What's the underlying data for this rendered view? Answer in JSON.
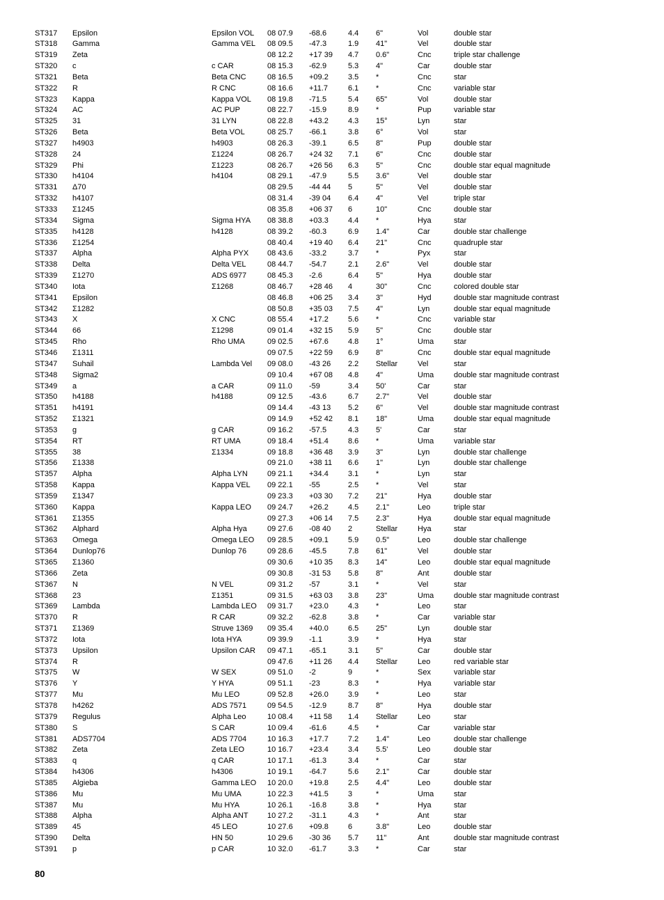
{
  "page_number": "80",
  "rows": [
    {
      "id": "ST317",
      "name": "Epsilon",
      "desig": "Epsilon VOL",
      "ra": "08 07.9",
      "dec": "-68.6",
      "mag": "4.4",
      "sep": "6\"",
      "const": "Vol",
      "type": "double star"
    },
    {
      "id": "ST318",
      "name": "Gamma",
      "desig": "Gamma VEL",
      "ra": "08 09.5",
      "dec": "-47.3",
      "mag": "1.9",
      "sep": "41\"",
      "const": "Vel",
      "type": "double star"
    },
    {
      "id": "ST319",
      "name": "Zeta",
      "desig": "",
      "ra": "08 12.2",
      "dec": "+17 39",
      "mag": "4.7",
      "sep": "0.6\"",
      "const": "Cnc",
      "type": "triple star challenge"
    },
    {
      "id": "ST320",
      "name": "c",
      "desig": "c CAR",
      "ra": "08 15.3",
      "dec": "-62.9",
      "mag": "5.3",
      "sep": "4\"",
      "const": "Car",
      "type": "double star"
    },
    {
      "id": "ST321",
      "name": "Beta",
      "desig": "Beta CNC",
      "ra": "08 16.5",
      "dec": "+09.2",
      "mag": "3.5",
      "sep": "*",
      "const": "Cnc",
      "type": "star"
    },
    {
      "id": "ST322",
      "name": "R",
      "desig": "R CNC",
      "ra": "08 16.6",
      "dec": "+11.7",
      "mag": "6.1",
      "sep": "*",
      "const": "Cnc",
      "type": "variable star"
    },
    {
      "id": "ST323",
      "name": "Kappa",
      "desig": "Kappa VOL",
      "ra": "08 19.8",
      "dec": "-71.5",
      "mag": "5.4",
      "sep": "65\"",
      "const": "Vol",
      "type": "double star"
    },
    {
      "id": "ST324",
      "name": "AC",
      "desig": "AC PUP",
      "ra": "08 22.7",
      "dec": "-15.9",
      "mag": "8.9",
      "sep": "*",
      "const": "Pup",
      "type": "variable star"
    },
    {
      "id": "ST325",
      "name": "31",
      "desig": "31 LYN",
      "ra": "08 22.8",
      "dec": "+43.2",
      "mag": "4.3",
      "sep": "15°",
      "const": "Lyn",
      "type": "star"
    },
    {
      "id": "ST326",
      "name": "Beta",
      "desig": "Beta VOL",
      "ra": "08 25.7",
      "dec": "-66.1",
      "mag": "3.8",
      "sep": "6°",
      "const": "Vol",
      "type": "star"
    },
    {
      "id": "ST327",
      "name": "h4903",
      "desig": "h4903",
      "ra": "08 26.3",
      "dec": "-39.1",
      "mag": "6.5",
      "sep": "8\"",
      "const": "Pup",
      "type": "double star"
    },
    {
      "id": "ST328",
      "name": "24",
      "desig": "Σ1224",
      "ra": "08 26.7",
      "dec": "+24 32",
      "mag": "7.1",
      "sep": "6\"",
      "const": "Cnc",
      "type": "double star"
    },
    {
      "id": "ST329",
      "name": "Phi",
      "desig": "Σ1223",
      "ra": "08 26.7",
      "dec": "+26 56",
      "mag": "6.3",
      "sep": "5\"",
      "const": "Cnc",
      "type": "double star equal magnitude"
    },
    {
      "id": "ST330",
      "name": "h4104",
      "desig": "h4104",
      "ra": "08 29.1",
      "dec": "-47.9",
      "mag": "5.5",
      "sep": "3.6\"",
      "const": "Vel",
      "type": "double star"
    },
    {
      "id": "ST331",
      "name": "Δ70",
      "desig": "",
      "ra": "08 29.5",
      "dec": "-44 44",
      "mag": "5",
      "sep": "5\"",
      "const": "Vel",
      "type": "double star"
    },
    {
      "id": "ST332",
      "name": "h4107",
      "desig": "",
      "ra": "08 31.4",
      "dec": "-39 04",
      "mag": "6.4",
      "sep": "4\"",
      "const": "Vel",
      "type": "triple star"
    },
    {
      "id": "ST333",
      "name": "Σ1245",
      "desig": "",
      "ra": "08 35.8",
      "dec": "+06 37",
      "mag": "6",
      "sep": "10\"",
      "const": "Cnc",
      "type": "double star"
    },
    {
      "id": "ST334",
      "name": "Sigma",
      "desig": "Sigma HYA",
      "ra": "08 38.8",
      "dec": "+03.3",
      "mag": "4.4",
      "sep": "*",
      "const": "Hya",
      "type": "star"
    },
    {
      "id": "ST335",
      "name": "h4128",
      "desig": "h4128",
      "ra": "08 39.2",
      "dec": "-60.3",
      "mag": "6.9",
      "sep": "1.4\"",
      "const": "Car",
      "type": "double star challenge"
    },
    {
      "id": "ST336",
      "name": "Σ1254",
      "desig": "",
      "ra": "08 40.4",
      "dec": "+19 40",
      "mag": "6.4",
      "sep": "21\"",
      "const": "Cnc",
      "type": "quadruple star"
    },
    {
      "id": "ST337",
      "name": "Alpha",
      "desig": "Alpha PYX",
      "ra": "08 43.6",
      "dec": "-33.2",
      "mag": "3.7",
      "sep": "*",
      "const": "Pyx",
      "type": "star"
    },
    {
      "id": "ST338",
      "name": "Delta",
      "desig": "Delta VEL",
      "ra": "08 44.7",
      "dec": "-54.7",
      "mag": "2.1",
      "sep": "2.6\"",
      "const": "Vel",
      "type": "double star"
    },
    {
      "id": "ST339",
      "name": "Σ1270",
      "desig": "ADS 6977",
      "ra": "08 45.3",
      "dec": "-2.6",
      "mag": "6.4",
      "sep": "5\"",
      "const": "Hya",
      "type": "double star"
    },
    {
      "id": "ST340",
      "name": "Iota",
      "desig": "Σ1268",
      "ra": "08 46.7",
      "dec": "+28 46",
      "mag": "4",
      "sep": "30\"",
      "const": "Cnc",
      "type": "colored double star"
    },
    {
      "id": "ST341",
      "name": "Epsilon",
      "desig": "",
      "ra": "08 46.8",
      "dec": "+06 25",
      "mag": "3.4",
      "sep": "3\"",
      "const": "Hyd",
      "type": "double star magnitude contrast"
    },
    {
      "id": "ST342",
      "name": "Σ1282",
      "desig": "",
      "ra": "08 50.8",
      "dec": "+35 03",
      "mag": "7.5",
      "sep": "4\"",
      "const": "Lyn",
      "type": "double star equal magnitude"
    },
    {
      "id": "ST343",
      "name": "X",
      "desig": "X CNC",
      "ra": "08 55.4",
      "dec": "+17.2",
      "mag": "5.6",
      "sep": "*",
      "const": "Cnc",
      "type": "variable star"
    },
    {
      "id": "ST344",
      "name": "66",
      "desig": "Σ1298",
      "ra": "09 01.4",
      "dec": "+32 15",
      "mag": "5.9",
      "sep": "5\"",
      "const": "Cnc",
      "type": "double star"
    },
    {
      "id": "ST345",
      "name": "Rho",
      "desig": "Rho UMA",
      "ra": "09 02.5",
      "dec": "+67.6",
      "mag": "4.8",
      "sep": "1°",
      "const": "Uma",
      "type": "star"
    },
    {
      "id": "ST346",
      "name": "Σ1311",
      "desig": "",
      "ra": "09 07.5",
      "dec": "+22 59",
      "mag": "6.9",
      "sep": "8\"",
      "const": "Cnc",
      "type": "double star equal magnitude"
    },
    {
      "id": "ST347",
      "name": "Suhail",
      "desig": "Lambda Vel",
      "ra": "09 08.0",
      "dec": "-43 26",
      "mag": "2.2",
      "sep": "Stellar",
      "const": "Vel",
      "type": "star"
    },
    {
      "id": "ST348",
      "name": "Sigma2",
      "desig": "",
      "ra": "09 10.4",
      "dec": "+67 08",
      "mag": "4.8",
      "sep": "4\"",
      "const": "Uma",
      "type": "double star magnitude contrast"
    },
    {
      "id": "ST349",
      "name": "a",
      "desig": "a CAR",
      "ra": "09 11.0",
      "dec": "-59",
      "mag": "3.4",
      "sep": "50'",
      "const": "Car",
      "type": "star"
    },
    {
      "id": "ST350",
      "name": "h4188",
      "desig": "h4188",
      "ra": "09 12.5",
      "dec": "-43.6",
      "mag": "6.7",
      "sep": "2.7\"",
      "const": "Vel",
      "type": "double star"
    },
    {
      "id": "ST351",
      "name": "h4191",
      "desig": "",
      "ra": "09 14.4",
      "dec": "-43 13",
      "mag": "5.2",
      "sep": "6\"",
      "const": "Vel",
      "type": "double star magnitude contrast"
    },
    {
      "id": "ST352",
      "name": "Σ1321",
      "desig": "",
      "ra": "09 14.9",
      "dec": "+52 42",
      "mag": "8.1",
      "sep": "18\"",
      "const": "Uma",
      "type": "double star equal magnitude"
    },
    {
      "id": "ST353",
      "name": "g",
      "desig": "g CAR",
      "ra": "09 16.2",
      "dec": "-57.5",
      "mag": "4.3",
      "sep": "5'",
      "const": "Car",
      "type": "star"
    },
    {
      "id": "ST354",
      "name": "RT",
      "desig": "RT UMA",
      "ra": "09 18.4",
      "dec": "+51.4",
      "mag": "8.6",
      "sep": "*",
      "const": "Uma",
      "type": "variable star"
    },
    {
      "id": "ST355",
      "name": "38",
      "desig": "Σ1334",
      "ra": "09 18.8",
      "dec": "+36 48",
      "mag": "3.9",
      "sep": "3\"",
      "const": "Lyn",
      "type": "double star challenge"
    },
    {
      "id": "ST356",
      "name": "Σ1338",
      "desig": "",
      "ra": "09 21.0",
      "dec": "+38 11",
      "mag": "6.6",
      "sep": "1\"",
      "const": "Lyn",
      "type": "double star challenge"
    },
    {
      "id": "ST357",
      "name": "Alpha",
      "desig": "Alpha LYN",
      "ra": "09 21.1",
      "dec": "+34.4",
      "mag": "3.1",
      "sep": "*",
      "const": "Lyn",
      "type": "star"
    },
    {
      "id": "ST358",
      "name": "Kappa",
      "desig": "Kappa VEL",
      "ra": "09 22.1",
      "dec": "-55",
      "mag": "2.5",
      "sep": "*",
      "const": "Vel",
      "type": "star"
    },
    {
      "id": "ST359",
      "name": "Σ1347",
      "desig": "",
      "ra": "09 23.3",
      "dec": "+03 30",
      "mag": "7.2",
      "sep": "21\"",
      "const": "Hya",
      "type": "double star"
    },
    {
      "id": "ST360",
      "name": "Kappa",
      "desig": "Kappa LEO",
      "ra": "09 24.7",
      "dec": "+26.2",
      "mag": "4.5",
      "sep": "2.1\"",
      "const": "Leo",
      "type": "triple star"
    },
    {
      "id": "ST361",
      "name": "Σ1355",
      "desig": "",
      "ra": "09 27.3",
      "dec": "+06 14",
      "mag": "7.5",
      "sep": "2.3\"",
      "const": "Hya",
      "type": "double star equal magnitude"
    },
    {
      "id": "ST362",
      "name": "Alphard",
      "desig": "Alpha Hya",
      "ra": "09 27.6",
      "dec": "-08 40",
      "mag": "2",
      "sep": "Stellar",
      "const": "Hya",
      "type": "star"
    },
    {
      "id": "ST363",
      "name": "Omega",
      "desig": "Omega LEO",
      "ra": "09 28.5",
      "dec": "+09.1",
      "mag": "5.9",
      "sep": "0.5\"",
      "const": "Leo",
      "type": "double star challenge"
    },
    {
      "id": "ST364",
      "name": "Dunlop76",
      "desig": "Dunlop 76",
      "ra": "09 28.6",
      "dec": "-45.5",
      "mag": "7.8",
      "sep": "61\"",
      "const": "Vel",
      "type": "double star"
    },
    {
      "id": "ST365",
      "name": "Σ1360",
      "desig": "",
      "ra": "09 30.6",
      "dec": "+10 35",
      "mag": "8.3",
      "sep": "14\"",
      "const": "Leo",
      "type": "double star equal magnitude"
    },
    {
      "id": "ST366",
      "name": "Zeta",
      "desig": "",
      "ra": "09 30.8",
      "dec": "-31 53",
      "mag": "5.8",
      "sep": "8\"",
      "const": "Ant",
      "type": "double star"
    },
    {
      "id": "ST367",
      "name": "N",
      "desig": "N VEL",
      "ra": "09 31.2",
      "dec": "-57",
      "mag": "3.1",
      "sep": "*",
      "const": "Vel",
      "type": "star"
    },
    {
      "id": "ST368",
      "name": "23",
      "desig": "Σ1351",
      "ra": "09 31.5",
      "dec": "+63 03",
      "mag": "3.8",
      "sep": "23\"",
      "const": "Uma",
      "type": "double star magnitude contrast"
    },
    {
      "id": "ST369",
      "name": "Lambda",
      "desig": "Lambda LEO",
      "ra": "09 31.7",
      "dec": "+23.0",
      "mag": "4.3",
      "sep": "*",
      "const": "Leo",
      "type": "star"
    },
    {
      "id": "ST370",
      "name": "R",
      "desig": "R CAR",
      "ra": "09 32.2",
      "dec": "-62.8",
      "mag": "3.8",
      "sep": "*",
      "const": "Car",
      "type": "variable star"
    },
    {
      "id": "ST371",
      "name": "Σ1369",
      "desig": "Struve 1369",
      "ra": "09 35.4",
      "dec": "+40.0",
      "mag": "6.5",
      "sep": "25\"",
      "const": "Lyn",
      "type": "double star"
    },
    {
      "id": "ST372",
      "name": "Iota",
      "desig": "Iota HYA",
      "ra": "09 39.9",
      "dec": "-1.1",
      "mag": "3.9",
      "sep": "*",
      "const": "Hya",
      "type": "star"
    },
    {
      "id": "ST373",
      "name": "Upsilon",
      "desig": "Upsilon CAR",
      "ra": "09 47.1",
      "dec": "-65.1",
      "mag": "3.1",
      "sep": "5\"",
      "const": "Car",
      "type": "double star"
    },
    {
      "id": "ST374",
      "name": "R",
      "desig": "",
      "ra": "09 47.6",
      "dec": "+11 26",
      "mag": "4.4",
      "sep": "Stellar",
      "const": "Leo",
      "type": "red variable star"
    },
    {
      "id": "ST375",
      "name": "W",
      "desig": "W SEX",
      "ra": "09 51.0",
      "dec": "-2",
      "mag": "9",
      "sep": "*",
      "const": "Sex",
      "type": "variable star"
    },
    {
      "id": "ST376",
      "name": "Y",
      "desig": "Y HYA",
      "ra": "09 51.1",
      "dec": "-23",
      "mag": "8.3",
      "sep": "*",
      "const": "Hya",
      "type": "variable star"
    },
    {
      "id": "ST377",
      "name": "Mu",
      "desig": "Mu LEO",
      "ra": "09 52.8",
      "dec": "+26.0",
      "mag": "3.9",
      "sep": "*",
      "const": "Leo",
      "type": "star"
    },
    {
      "id": "ST378",
      "name": "h4262",
      "desig": "ADS 7571",
      "ra": "09 54.5",
      "dec": "-12.9",
      "mag": "8.7",
      "sep": "8\"",
      "const": "Hya",
      "type": "double star"
    },
    {
      "id": "ST379",
      "name": "Regulus",
      "desig": "Alpha Leo",
      "ra": "10 08.4",
      "dec": "+11 58",
      "mag": "1.4",
      "sep": "Stellar",
      "const": "Leo",
      "type": "star"
    },
    {
      "id": "ST380",
      "name": "S",
      "desig": "S CAR",
      "ra": "10 09.4",
      "dec": "-61.6",
      "mag": "4.5",
      "sep": "*",
      "const": "Car",
      "type": "variable star"
    },
    {
      "id": "ST381",
      "name": "ADS7704",
      "desig": "ADS 7704",
      "ra": "10 16.3",
      "dec": "+17.7",
      "mag": "7.2",
      "sep": "1.4\"",
      "const": "Leo",
      "type": "double star challenge"
    },
    {
      "id": "ST382",
      "name": "Zeta",
      "desig": "Zeta LEO",
      "ra": "10 16.7",
      "dec": "+23.4",
      "mag": "3.4",
      "sep": "5.5'",
      "const": "Leo",
      "type": "double star"
    },
    {
      "id": "ST383",
      "name": "q",
      "desig": "q CAR",
      "ra": "10 17.1",
      "dec": "-61.3",
      "mag": "3.4",
      "sep": "*",
      "const": "Car",
      "type": "star"
    },
    {
      "id": "ST384",
      "name": "h4306",
      "desig": "h4306",
      "ra": "10 19.1",
      "dec": "-64.7",
      "mag": "5.6",
      "sep": "2.1\"",
      "const": "Car",
      "type": "double star"
    },
    {
      "id": "ST385",
      "name": "Algieba",
      "desig": "Gamma LEO",
      "ra": "10 20.0",
      "dec": "+19.8",
      "mag": "2.5",
      "sep": "4.4\"",
      "const": "Leo",
      "type": "double star"
    },
    {
      "id": "ST386",
      "name": "Mu",
      "desig": "Mu UMA",
      "ra": "10 22.3",
      "dec": "+41.5",
      "mag": "3",
      "sep": "*",
      "const": "Uma",
      "type": "star"
    },
    {
      "id": "ST387",
      "name": "Mu",
      "desig": "Mu HYA",
      "ra": "10 26.1",
      "dec": "-16.8",
      "mag": "3.8",
      "sep": "*",
      "const": "Hya",
      "type": "star"
    },
    {
      "id": "ST388",
      "name": "Alpha",
      "desig": "Alpha ANT",
      "ra": "10 27.2",
      "dec": "-31.1",
      "mag": "4.3",
      "sep": "*",
      "const": "Ant",
      "type": "star"
    },
    {
      "id": "ST389",
      "name": "45",
      "desig": "45 LEO",
      "ra": "10 27.6",
      "dec": "+09.8",
      "mag": "6",
      "sep": "3.8\"",
      "const": "Leo",
      "type": "double star"
    },
    {
      "id": "ST390",
      "name": "Delta",
      "desig": "HN 50",
      "ra": "10 29.6",
      "dec": "-30 36",
      "mag": "5.7",
      "sep": "11\"",
      "const": "Ant",
      "type": "double star magnitude contrast"
    },
    {
      "id": "ST391",
      "name": "p",
      "desig": "p CAR",
      "ra": "10 32.0",
      "dec": "-61.7",
      "mag": "3.3",
      "sep": "*",
      "const": "Car",
      "type": "star"
    }
  ]
}
